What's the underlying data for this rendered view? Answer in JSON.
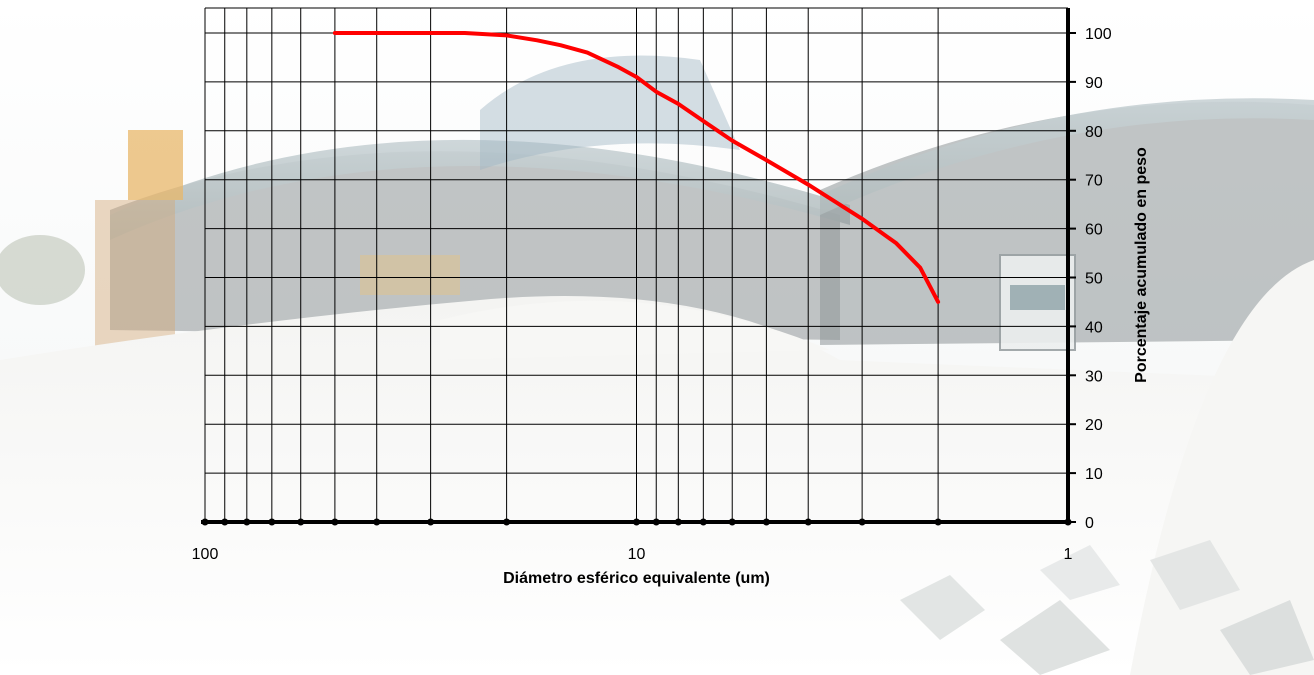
{
  "colors": {
    "curve": "#ff0000",
    "grid": "#000000",
    "axis": "#000000"
  },
  "background": "photo of an industrial shed with white mineral piles and a truck",
  "chart_data": {
    "type": "line",
    "title": "",
    "xlabel": "Diámetro esférico equivalente (um)",
    "ylabel": "Porcentaje acumulado en peso",
    "x_scale": "log",
    "x_reversed": true,
    "xlim": [
      100,
      1
    ],
    "ylim": [
      0,
      100
    ],
    "x_ticks": [
      100,
      10,
      1
    ],
    "x_tick_labels": [
      "100",
      "10",
      "1"
    ],
    "x_minor_gridlines": [
      90,
      80,
      70,
      60,
      50,
      40,
      30,
      20,
      9,
      8,
      7,
      6,
      5,
      4,
      3,
      2
    ],
    "y_ticks": [
      0,
      10,
      20,
      30,
      40,
      50,
      60,
      70,
      80,
      90,
      100
    ],
    "y_tick_labels": [
      "0",
      "10",
      "20",
      "30",
      "40",
      "50",
      "60",
      "70",
      "80",
      "90",
      "100"
    ],
    "y_axis_side": "right",
    "grid": true,
    "legend": "none",
    "series": [
      {
        "x": [
          50,
          40,
          30,
          25,
          20,
          17,
          15,
          13,
          11,
          10,
          9,
          8,
          7,
          6,
          5,
          4,
          3,
          2.5,
          2.2,
          2
        ],
        "y": [
          100,
          100,
          100,
          100,
          99.5,
          98.5,
          97.5,
          96,
          93,
          91,
          88,
          85.5,
          82,
          78,
          74,
          69,
          62,
          57,
          52,
          45
        ]
      }
    ]
  }
}
